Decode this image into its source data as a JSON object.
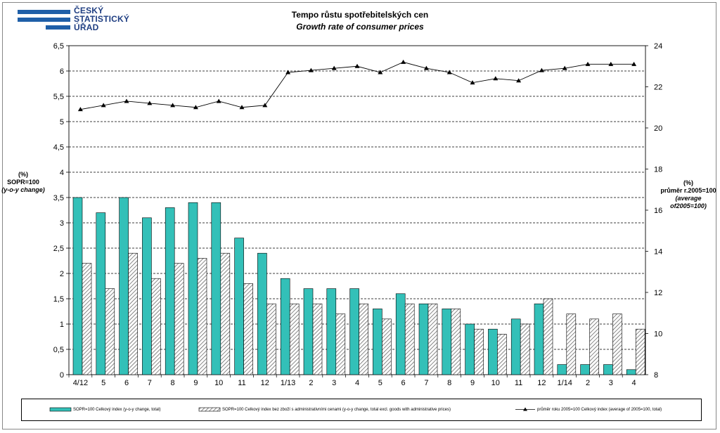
{
  "logo": {
    "lines": [
      "ČESKÝ",
      "STATISTICKÝ",
      "ÚŘAD"
    ],
    "color": "#1f5fa8"
  },
  "title_cz": "Tempo růstu spotřebitelských cen",
  "title_en": "Growth rate of consumer prices",
  "left_axis_label": [
    "(%)",
    "SOPR=100",
    "(y-o-y change)"
  ],
  "right_axis_label": [
    "(%)",
    "průměr r.2005=100",
    "(average of2005=100)"
  ],
  "legend": [
    "SOPR=100 Celkový index (y-o-y change, total)",
    "SOPR=100 Celkový index bez zboží s administrativními cenami (y-o-y change, total excl. goods with administrative prices)",
    "průměr roku 2005=100 Celkový index (average of 2005=100, total)"
  ],
  "chart_data": {
    "type": "bar",
    "categories": [
      "4/12",
      "5",
      "6",
      "7",
      "8",
      "9",
      "10",
      "11",
      "12",
      "1/13",
      "2",
      "3",
      "4",
      "5",
      "6",
      "7",
      "8",
      "9",
      "10",
      "11",
      "12",
      "1/14",
      "2",
      "3",
      "4"
    ],
    "ylim_left": [
      0,
      6.5
    ],
    "yticks_left": [
      "0",
      "0,5",
      "1",
      "1,5",
      "2",
      "2,5",
      "3",
      "3,5",
      "4",
      "4,5",
      "5",
      "5,5",
      "6",
      "6,5"
    ],
    "ylim_right": [
      8,
      24
    ],
    "yticks_right": [
      "8",
      "10",
      "12",
      "14",
      "16",
      "18",
      "20",
      "22",
      "24"
    ],
    "grid": true,
    "legend_position": "bottom",
    "colors": {
      "series1": "#33c0b8",
      "series2_hatch": "#555555",
      "line": "#000000"
    },
    "series": [
      {
        "name": "SOPR=100 Celkový index (y-o-y change, total)",
        "axis": "left",
        "style": "bar",
        "values": [
          3.5,
          3.2,
          3.5,
          3.1,
          3.3,
          3.4,
          3.4,
          2.7,
          2.4,
          1.9,
          1.7,
          1.7,
          1.7,
          1.3,
          1.6,
          1.4,
          1.3,
          1.0,
          0.9,
          1.1,
          1.4,
          0.2,
          0.2,
          0.2,
          0.1
        ]
      },
      {
        "name": "SOPR=100 Celkový index bez zboží s administrativními cenami (y-o-y change, total excl. goods with administrative prices)",
        "axis": "left",
        "style": "hatched-bar",
        "values": [
          2.2,
          1.7,
          2.4,
          1.9,
          2.2,
          2.3,
          2.4,
          1.8,
          1.4,
          1.4,
          1.4,
          1.2,
          1.4,
          1.1,
          1.4,
          1.4,
          1.3,
          0.9,
          0.8,
          1.0,
          1.5,
          1.2,
          1.1,
          1.2,
          0.9
        ]
      },
      {
        "name": "průměr roku 2005=100 Celkový index (average of 2005=100, total)",
        "axis": "right",
        "style": "line-triangle",
        "values": [
          20.9,
          21.1,
          21.3,
          21.2,
          21.1,
          21.0,
          21.3,
          21.0,
          21.1,
          22.7,
          22.8,
          22.9,
          23.0,
          22.7,
          23.2,
          22.9,
          22.7,
          22.2,
          22.4,
          22.3,
          22.8,
          22.9,
          23.1,
          23.1,
          23.1
        ]
      }
    ]
  }
}
